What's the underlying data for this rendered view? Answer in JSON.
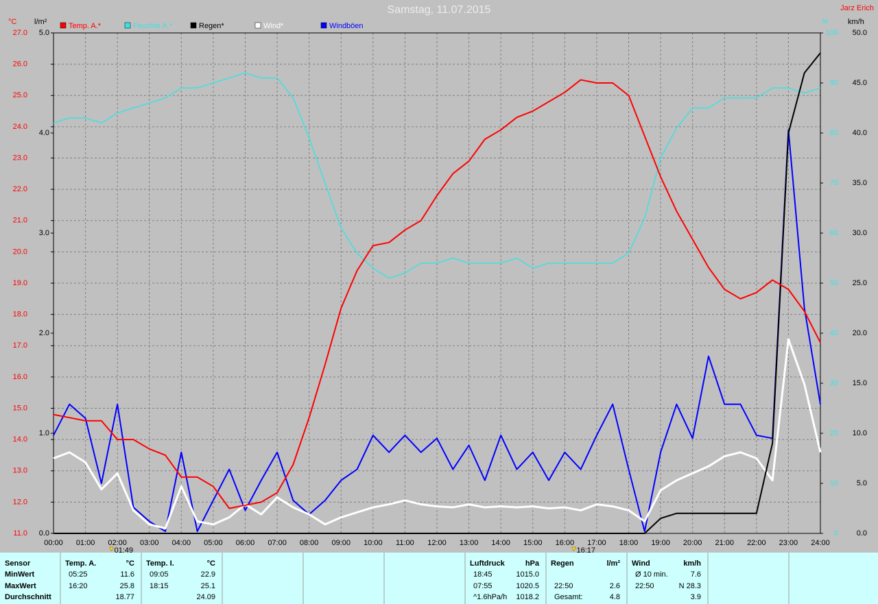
{
  "chart_data": {
    "type": "line",
    "title": "Samstag, 11.07.2015",
    "author": "Jarz Erich",
    "x": [
      0,
      0.5,
      1,
      1.5,
      2,
      2.5,
      3,
      3.5,
      4,
      4.5,
      5,
      5.5,
      6,
      6.5,
      7,
      7.5,
      8,
      8.5,
      9,
      9.5,
      10,
      10.5,
      11,
      11.5,
      12,
      12.5,
      13,
      13.5,
      14,
      14.5,
      15,
      15.5,
      16,
      16.5,
      17,
      17.5,
      18,
      18.5,
      19,
      19.5,
      20,
      20.5,
      21,
      21.5,
      22,
      22.5,
      23,
      23.5,
      24
    ],
    "xlim": [
      0,
      24
    ],
    "xticks": [
      {
        "value": 0,
        "label": "00:00"
      },
      {
        "value": 1,
        "label": "01:00"
      },
      {
        "value": 2,
        "label": "02:00"
      },
      {
        "value": 3,
        "label": "03:00"
      },
      {
        "value": 4,
        "label": "04:00"
      },
      {
        "value": 5,
        "label": "05:00"
      },
      {
        "value": 6,
        "label": "06:00"
      },
      {
        "value": 7,
        "label": "07:00"
      },
      {
        "value": 8,
        "label": "08:00"
      },
      {
        "value": 9,
        "label": "09:00"
      },
      {
        "value": 10,
        "label": "10:00"
      },
      {
        "value": 11,
        "label": "11:00"
      },
      {
        "value": 12,
        "label": "12:00"
      },
      {
        "value": 13,
        "label": "13:00"
      },
      {
        "value": 14,
        "label": "14:00"
      },
      {
        "value": 15,
        "label": "15:00"
      },
      {
        "value": 16,
        "label": "16:00"
      },
      {
        "value": 17,
        "label": "17:00"
      },
      {
        "value": 18,
        "label": "18:00"
      },
      {
        "value": 19,
        "label": "19:00"
      },
      {
        "value": 20,
        "label": "20:00"
      },
      {
        "value": 21,
        "label": "21:00"
      },
      {
        "value": 22,
        "label": "22:00"
      },
      {
        "value": 23,
        "label": "23:00"
      },
      {
        "value": 24,
        "label": "24:00"
      }
    ],
    "markers": [
      {
        "value": 1.8167,
        "label": "01:49"
      },
      {
        "value": 16.2833,
        "label": "16:17"
      }
    ],
    "ylabel": "°C",
    "ycolor": "#ff0000",
    "ylim": [
      11,
      27
    ],
    "yticks": [
      {
        "value": 11,
        "label": "11.0"
      },
      {
        "value": 12,
        "label": "12.0"
      },
      {
        "value": 13,
        "label": "13.0"
      },
      {
        "value": 14,
        "label": "14.0"
      },
      {
        "value": 15,
        "label": "15.0"
      },
      {
        "value": 16,
        "label": "16.0"
      },
      {
        "value": 17,
        "label": "17.0"
      },
      {
        "value": 18,
        "label": "18.0"
      },
      {
        "value": 19,
        "label": "19.0"
      },
      {
        "value": 20,
        "label": "20.0"
      },
      {
        "value": 21,
        "label": "21.0"
      },
      {
        "value": 22,
        "label": "22.0"
      },
      {
        "value": 23,
        "label": "23.0"
      },
      {
        "value": 24,
        "label": "24.0"
      },
      {
        "value": 25,
        "label": "25.0"
      },
      {
        "value": 26,
        "label": "26.0"
      },
      {
        "value": 27,
        "label": "27.0"
      }
    ],
    "y2label": "l/m²",
    "y2color": "#000000",
    "y2lim": [
      0,
      5
    ],
    "y2ticks": [
      {
        "value": 0,
        "label": "0.0"
      },
      {
        "value": 1,
        "label": "1.0"
      },
      {
        "value": 2,
        "label": "2.0"
      },
      {
        "value": 3,
        "label": "3.0"
      },
      {
        "value": 4,
        "label": "4.0"
      },
      {
        "value": 5,
        "label": "5.0"
      }
    ],
    "y3label": "%",
    "y3color": "#40e0e0",
    "y3lim": [
      0,
      100
    ],
    "y3ticks": [
      0,
      10,
      20,
      30,
      40,
      50,
      60,
      70,
      80,
      90,
      100
    ],
    "y4label": "km/h",
    "y4color": "#000000",
    "y4lim": [
      0,
      50
    ],
    "y4ticks": [
      {
        "value": 0,
        "label": "0.0"
      },
      {
        "value": 5,
        "label": "5.0"
      },
      {
        "value": 10,
        "label": "10.0"
      },
      {
        "value": 15,
        "label": "15.0"
      },
      {
        "value": 20,
        "label": "20.0"
      },
      {
        "value": 25,
        "label": "25.0"
      },
      {
        "value": 30,
        "label": "30.0"
      },
      {
        "value": 35,
        "label": "35.0"
      },
      {
        "value": 40,
        "label": "40.0"
      },
      {
        "value": 45,
        "label": "45.0"
      },
      {
        "value": 50,
        "label": "50.0"
      }
    ],
    "grid": true,
    "series": [
      {
        "name": "Temp. A.*",
        "color": "#ff0000",
        "axis": "y",
        "width": 2,
        "values": [
          14.8,
          14.7,
          14.6,
          14.6,
          14.0,
          14.0,
          13.7,
          13.5,
          12.8,
          12.8,
          12.5,
          11.8,
          11.9,
          12.0,
          12.3,
          13.2,
          14.7,
          16.4,
          18.2,
          19.4,
          20.2,
          20.3,
          20.7,
          21.0,
          21.8,
          22.5,
          22.9,
          23.6,
          23.9,
          24.3,
          24.5,
          24.8,
          25.1,
          25.5,
          25.4,
          25.4,
          25.0,
          23.7,
          22.4,
          21.3,
          20.4,
          19.5,
          18.8,
          18.5,
          18.7,
          19.1,
          18.8,
          18.1,
          17.1
        ]
      },
      {
        "name": "Feuchte A.*",
        "color": "#40e0e0",
        "axis": "y3",
        "width": 1.5,
        "values": [
          82,
          83,
          83,
          82,
          84,
          85,
          86,
          87,
          89,
          89,
          90,
          91,
          92,
          91,
          91,
          87,
          79,
          70,
          61,
          56,
          53,
          51,
          52,
          54,
          54,
          55,
          54,
          54,
          54,
          55,
          53,
          54,
          54,
          54,
          54,
          54,
          56,
          63,
          75,
          81,
          85,
          85,
          87,
          87,
          87,
          89,
          89,
          88,
          89
        ]
      },
      {
        "name": "Regen*",
        "color": "#000000",
        "axis": "y2",
        "width": 2,
        "values": [
          0,
          0,
          0,
          0,
          0,
          0,
          0,
          0,
          0,
          0,
          0,
          0,
          0,
          0,
          0,
          0,
          0,
          0,
          0,
          0,
          0,
          0,
          0,
          0,
          0,
          0,
          0,
          0,
          0,
          0,
          0,
          0,
          0,
          0,
          0,
          0,
          0,
          0,
          0.15,
          0.2,
          0.2,
          0.2,
          0.2,
          0.2,
          0.2,
          0.9,
          4.0,
          4.6,
          4.8
        ]
      },
      {
        "name": "Wind*",
        "color": "#ffffff",
        "axis": "y4",
        "width": 3,
        "values": [
          7.5,
          8.1,
          7.1,
          4.4,
          6.0,
          2.3,
          0.9,
          0.5,
          4.7,
          1.2,
          0.9,
          1.6,
          2.9,
          1.9,
          3.6,
          2.6,
          1.9,
          0.9,
          1.6,
          2.1,
          2.6,
          2.9,
          3.3,
          2.9,
          2.7,
          2.6,
          2.9,
          2.6,
          2.7,
          2.6,
          2.7,
          2.5,
          2.6,
          2.3,
          2.9,
          2.7,
          2.3,
          1.2,
          4.3,
          5.3,
          6.0,
          6.7,
          7.7,
          8.1,
          7.5,
          5.3,
          19.4,
          14.9,
          8.1
        ]
      },
      {
        "name": "Windböen",
        "color": "#0000ff",
        "axis": "y4",
        "width": 2,
        "values": [
          9.8,
          12.9,
          11.5,
          5.0,
          12.9,
          2.6,
          1.2,
          0.2,
          8.1,
          0.2,
          3.3,
          6.4,
          2.3,
          5.3,
          8.1,
          3.3,
          1.9,
          3.3,
          5.3,
          6.4,
          9.8,
          8.1,
          9.8,
          8.1,
          9.5,
          6.4,
          8.8,
          5.3,
          9.8,
          6.4,
          8.1,
          5.3,
          8.1,
          6.4,
          9.8,
          12.9,
          6.4,
          0.2,
          8.1,
          12.9,
          9.5,
          17.7,
          12.9,
          12.9,
          9.8,
          9.5,
          40.3,
          22.5,
          12.9
        ]
      }
    ]
  },
  "stats": {
    "row_labels": [
      "Sensor",
      "MinWert",
      "MaxWert",
      "Durchschnitt"
    ],
    "groups": [
      {
        "header": [
          "Temp. A.",
          "°C"
        ],
        "rows": [
          [
            "05:25",
            "11.6"
          ],
          [
            "16:20",
            "25.8"
          ],
          [
            "18.77"
          ]
        ]
      },
      {
        "header": [
          "Temp. I.",
          "°C"
        ],
        "rows": [
          [
            "09:05",
            "22.9"
          ],
          [
            "18:15",
            "25.1"
          ],
          [
            "24.09"
          ]
        ]
      },
      {
        "header": [
          "Luftdruck",
          "hPa"
        ],
        "rows": [
          [
            "18:45",
            "1015.0"
          ],
          [
            "07:55",
            "1020.5"
          ],
          [
            "^1.6hPa/h",
            "1018.2"
          ]
        ]
      },
      {
        "header": [
          "Regen",
          "l/m²"
        ],
        "rows": [
          [],
          [
            "22:50",
            "2.6"
          ],
          [
            "Gesamt:",
            "4.8"
          ]
        ]
      },
      {
        "header": [
          "Wind",
          "km/h"
        ],
        "rows": [
          [
            "Ø 10 min.",
            "7.6"
          ],
          [
            "22:50",
            "N 28.3"
          ],
          [
            "3.9"
          ]
        ]
      }
    ]
  }
}
